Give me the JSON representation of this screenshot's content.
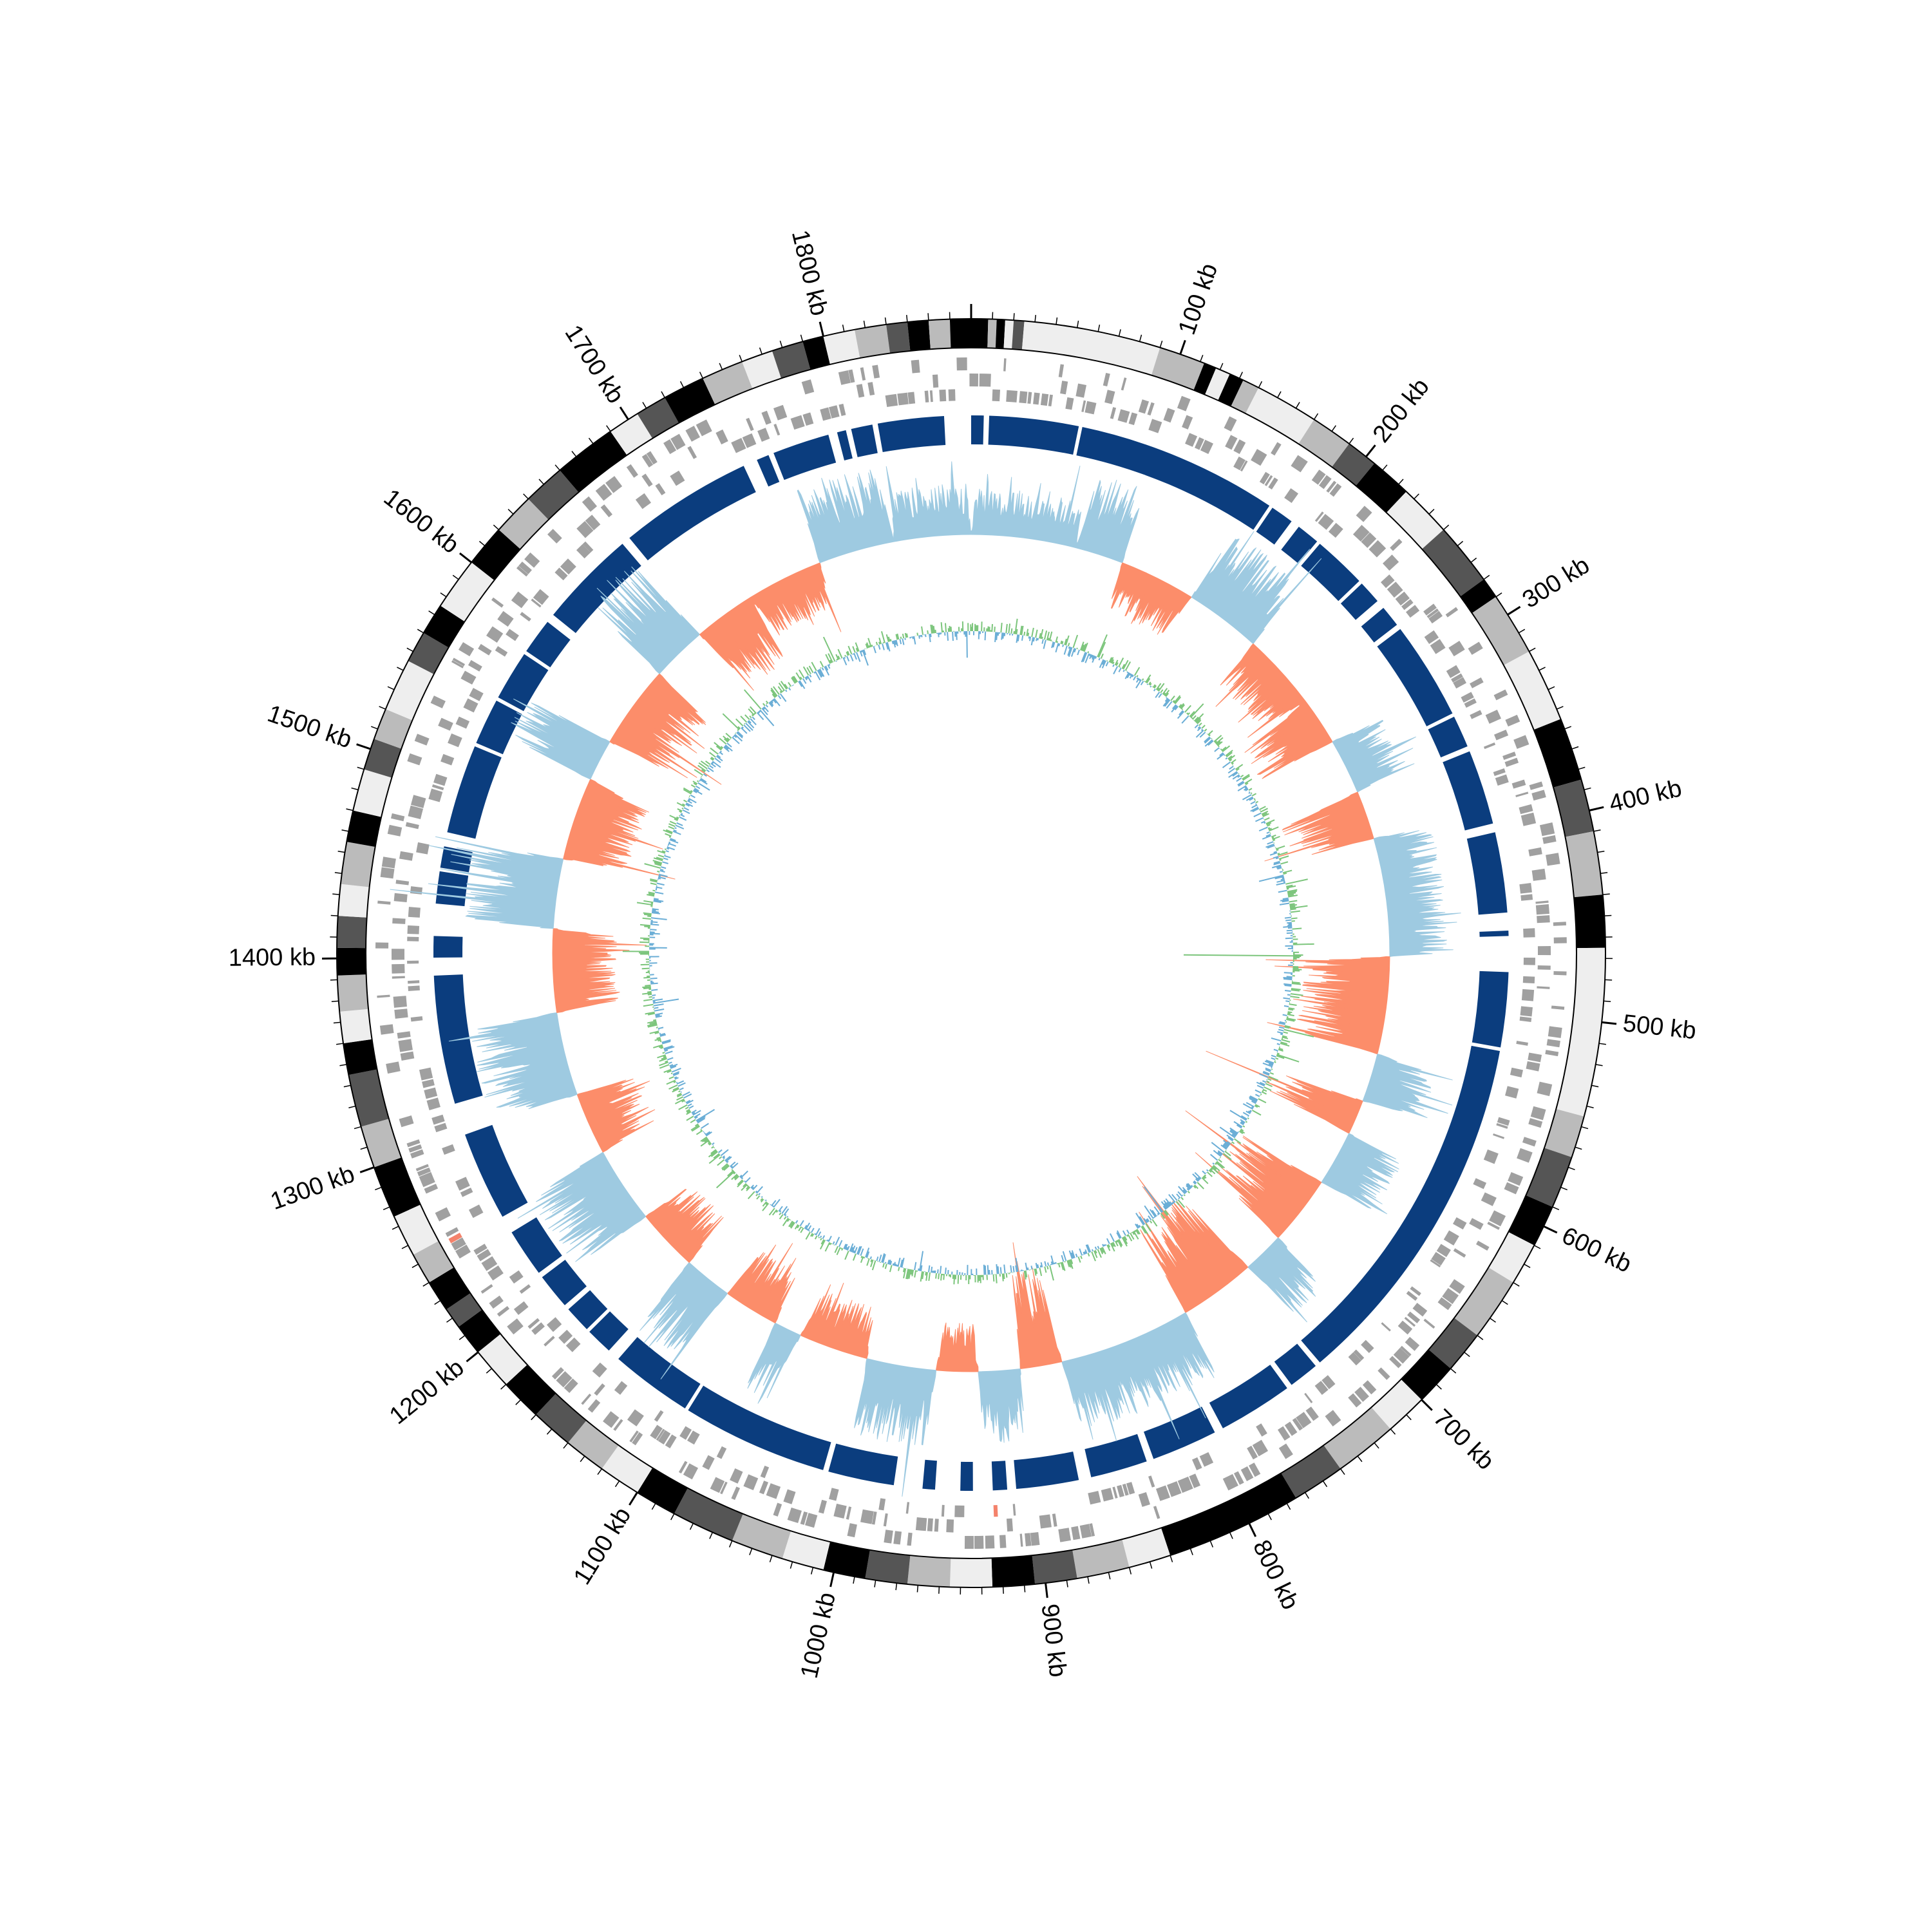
{
  "genome": {
    "length_kb": 1870,
    "unit": "kb"
  },
  "tick_labels": [
    "100 kb",
    "200 kb",
    "300 kb",
    "400 kb",
    "500 kb",
    "600 kb",
    "700 kb",
    "800 kb",
    "900 kb",
    "1000 kb",
    "1100 kb",
    "1200 kb",
    "1300 kb",
    "1400 kb",
    "1500 kb",
    "1600 kb",
    "1700 kb",
    "1800 kb"
  ],
  "tick_values_kb": [
    100,
    200,
    300,
    400,
    500,
    600,
    700,
    800,
    900,
    1000,
    1100,
    1200,
    1300,
    1400,
    1500,
    1600,
    1700,
    1800
  ],
  "colors": {
    "band_light": "#eeeeee",
    "band_mid": "#bbbbbb",
    "band_dark": "#555555",
    "band_black": "#000000",
    "gene": "#a0a0a0",
    "rna": "#f4826b",
    "alignment_blocks": "#0b3d7e",
    "gc_skew_positive": "#9ecae1",
    "gc_skew_negative": "#fc8d6a",
    "gc_content_above": "#7cc57c",
    "gc_content_below": "#6baed6"
  },
  "ideogram_bands_kb": [
    [
      0,
      8,
      "black"
    ],
    [
      8,
      12,
      "mid"
    ],
    [
      12,
      16,
      "black"
    ],
    [
      16,
      20,
      "light"
    ],
    [
      20,
      25,
      "dark"
    ],
    [
      25,
      90,
      "light"
    ],
    [
      90,
      112,
      "mid"
    ],
    [
      112,
      118,
      "black"
    ],
    [
      118,
      125,
      "light"
    ],
    [
      125,
      132,
      "black"
    ],
    [
      132,
      140,
      "mid"
    ],
    [
      140,
      170,
      "light"
    ],
    [
      170,
      190,
      "mid"
    ],
    [
      190,
      205,
      "dark"
    ],
    [
      205,
      225,
      "black"
    ],
    [
      225,
      250,
      "light"
    ],
    [
      250,
      280,
      "dark"
    ],
    [
      280,
      290,
      "black"
    ],
    [
      290,
      320,
      "mid"
    ],
    [
      320,
      355,
      "light"
    ],
    [
      355,
      385,
      "black"
    ],
    [
      385,
      410,
      "dark"
    ],
    [
      410,
      440,
      "mid"
    ],
    [
      440,
      465,
      "black"
    ],
    [
      465,
      545,
      "light"
    ],
    [
      545,
      565,
      "mid"
    ],
    [
      565,
      590,
      "dark"
    ],
    [
      590,
      610,
      "black"
    ],
    [
      610,
      630,
      "light"
    ],
    [
      630,
      660,
      "mid"
    ],
    [
      660,
      680,
      "dark"
    ],
    [
      680,
      700,
      "black"
    ],
    [
      700,
      720,
      "light"
    ],
    [
      720,
      750,
      "mid"
    ],
    [
      750,
      775,
      "dark"
    ],
    [
      775,
      840,
      "black"
    ],
    [
      840,
      860,
      "light"
    ],
    [
      860,
      885,
      "mid"
    ],
    [
      885,
      905,
      "dark"
    ],
    [
      905,
      925,
      "black"
    ],
    [
      925,
      945,
      "light"
    ],
    [
      945,
      965,
      "mid"
    ],
    [
      965,
      985,
      "dark"
    ],
    [
      985,
      1005,
      "black"
    ],
    [
      1005,
      1025,
      "light"
    ],
    [
      1025,
      1050,
      "mid"
    ],
    [
      1050,
      1080,
      "dark"
    ],
    [
      1080,
      1100,
      "black"
    ],
    [
      1100,
      1120,
      "light"
    ],
    [
      1120,
      1140,
      "mid"
    ],
    [
      1140,
      1160,
      "dark"
    ],
    [
      1160,
      1180,
      "black"
    ],
    [
      1180,
      1200,
      "light"
    ],
    [
      1200,
      1215,
      "black"
    ],
    [
      1215,
      1225,
      "dark"
    ],
    [
      1225,
      1240,
      "black"
    ],
    [
      1240,
      1255,
      "mid"
    ],
    [
      1255,
      1275,
      "light"
    ],
    [
      1275,
      1300,
      "black"
    ],
    [
      1300,
      1320,
      "mid"
    ],
    [
      1320,
      1345,
      "dark"
    ],
    [
      1345,
      1360,
      "black"
    ],
    [
      1360,
      1375,
      "light"
    ],
    [
      1375,
      1392,
      "mid"
    ],
    [
      1392,
      1405,
      "black"
    ],
    [
      1405,
      1420,
      "dark"
    ],
    [
      1420,
      1435,
      "light"
    ],
    [
      1435,
      1455,
      "mid"
    ],
    [
      1455,
      1470,
      "black"
    ],
    [
      1470,
      1490,
      "light"
    ],
    [
      1490,
      1505,
      "dark"
    ],
    [
      1505,
      1520,
      "mid"
    ],
    [
      1520,
      1545,
      "light"
    ],
    [
      1545,
      1560,
      "dark"
    ],
    [
      1560,
      1575,
      "black"
    ],
    [
      1575,
      1600,
      "light"
    ],
    [
      1600,
      1620,
      "black"
    ],
    [
      1620,
      1640,
      "mid"
    ],
    [
      1640,
      1660,
      "dark"
    ],
    [
      1660,
      1690,
      "black"
    ],
    [
      1690,
      1705,
      "light"
    ],
    [
      1705,
      1720,
      "dark"
    ],
    [
      1720,
      1740,
      "black"
    ],
    [
      1740,
      1760,
      "mid"
    ],
    [
      1760,
      1775,
      "light"
    ],
    [
      1775,
      1790,
      "dark"
    ],
    [
      1790,
      1800,
      "black"
    ],
    [
      1800,
      1815,
      "light"
    ],
    [
      1815,
      1830,
      "mid"
    ],
    [
      1830,
      1840,
      "dark"
    ],
    [
      1840,
      1850,
      "black"
    ],
    [
      1850,
      1860,
      "mid"
    ],
    [
      1860,
      1870,
      "black"
    ]
  ],
  "alignment_blocks_kb": [
    [
      0,
      7
    ],
    [
      10,
      60
    ],
    [
      62,
      175
    ],
    [
      177,
      190
    ],
    [
      195,
      208
    ],
    [
      210,
      240
    ],
    [
      242,
      255
    ],
    [
      260,
      272
    ],
    [
      275,
      330
    ],
    [
      332,
      350
    ],
    [
      353,
      395
    ],
    [
      400,
      445
    ],
    [
      455,
      458
    ],
    [
      478,
      520
    ],
    [
      522,
      725
    ],
    [
      728,
      745
    ],
    [
      748,
      790
    ],
    [
      795,
      832
    ],
    [
      836,
      868
    ],
    [
      875,
      910
    ],
    [
      915,
      923
    ],
    [
      934,
      941
    ],
    [
      955,
      962
    ],
    [
      978,
      1015
    ],
    [
      1018,
      1100
    ],
    [
      1102,
      1148
    ],
    [
      1155,
      1170
    ],
    [
      1172,
      1187
    ],
    [
      1190,
      1210
    ],
    [
      1213,
      1240
    ],
    [
      1250,
      1300
    ],
    [
      1318,
      1390
    ],
    [
      1400,
      1412
    ],
    [
      1430,
      1448
    ],
    [
      1450,
      1462
    ],
    [
      1470,
      1520
    ],
    [
      1522,
      1548
    ],
    [
      1550,
      1578
    ],
    [
      1580,
      1600
    ],
    [
      1605,
      1660
    ],
    [
      1665,
      1740
    ],
    [
      1748,
      1755
    ],
    [
      1758,
      1790
    ],
    [
      1795,
      1800
    ],
    [
      1803,
      1815
    ],
    [
      1818,
      1855
    ]
  ],
  "gc_skew_regions_kb": [
    [
      0,
      75,
      "pos"
    ],
    [
      75,
      110,
      "pos"
    ],
    [
      110,
      165,
      "neg"
    ],
    [
      165,
      220,
      "pos"
    ],
    [
      220,
      275,
      "neg"
    ],
    [
      275,
      310,
      "neg"
    ],
    [
      310,
      350,
      "pos"
    ],
    [
      350,
      385,
      "neg"
    ],
    [
      385,
      470,
      "pos"
    ],
    [
      470,
      540,
      "neg"
    ],
    [
      540,
      575,
      "pos"
    ],
    [
      575,
      600,
      "neg"
    ],
    [
      600,
      640,
      "pos"
    ],
    [
      640,
      690,
      "neg"
    ],
    [
      690,
      720,
      "pos"
    ],
    [
      720,
      775,
      "neg"
    ],
    [
      775,
      870,
      "pos"
    ],
    [
      870,
      900,
      "neg"
    ],
    [
      900,
      930,
      "pos"
    ],
    [
      930,
      960,
      "neg"
    ],
    [
      960,
      1010,
      "pos"
    ],
    [
      1010,
      1060,
      "neg"
    ],
    [
      1060,
      1080,
      "pos"
    ],
    [
      1080,
      1120,
      "neg"
    ],
    [
      1120,
      1155,
      "pos"
    ],
    [
      1155,
      1200,
      "neg"
    ],
    [
      1200,
      1255,
      "pos"
    ],
    [
      1255,
      1300,
      "neg"
    ],
    [
      1300,
      1360,
      "pos"
    ],
    [
      1360,
      1420,
      "neg"
    ],
    [
      1420,
      1470,
      "pos"
    ],
    [
      1470,
      1530,
      "neg"
    ],
    [
      1530,
      1560,
      "pos"
    ],
    [
      1560,
      1620,
      "neg"
    ],
    [
      1620,
      1660,
      "pos"
    ],
    [
      1660,
      1705,
      "neg"
    ],
    [
      1705,
      1760,
      "neg"
    ],
    [
      1760,
      1815,
      "pos"
    ],
    [
      1815,
      1870,
      "pos"
    ]
  ]
}
